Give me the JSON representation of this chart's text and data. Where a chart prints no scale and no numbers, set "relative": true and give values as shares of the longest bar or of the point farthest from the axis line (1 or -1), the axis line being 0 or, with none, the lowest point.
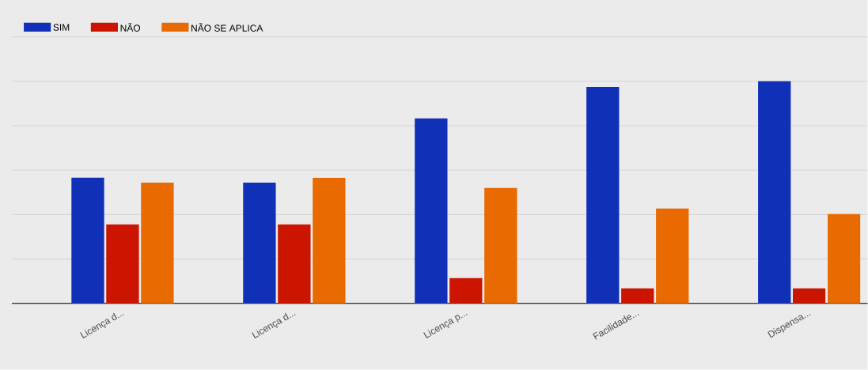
{
  "chart_data": {
    "type": "bar",
    "relative": true,
    "grid": "y",
    "legend": "top left",
    "categories": [
      "Licença d...",
      "Licença d...",
      "Licença p...",
      "Facilidade...",
      "Dispensa..."
    ],
    "series": [
      {
        "name": "SIM",
        "color": "#1030b8",
        "values": [
          0.566,
          0.544,
          0.833,
          0.975,
          1
        ]
      },
      {
        "name": "NÃO",
        "color": "#cc1500",
        "values": [
          0.356,
          0.356,
          0.114,
          0.068,
          0.068
        ]
      },
      {
        "name": "NÃO SE APLICA",
        "color": "#e86a00",
        "values": [
          0.544,
          0.566,
          0.52,
          0.427,
          0.402
        ]
      }
    ]
  }
}
